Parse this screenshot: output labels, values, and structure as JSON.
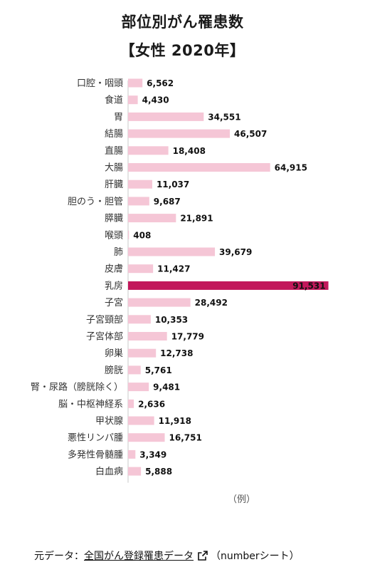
{
  "header": {
    "title": "部位別がん罹患数",
    "subtitle": "【女性 2020年】"
  },
  "chart_data": {
    "type": "bar",
    "orientation": "horizontal",
    "title": "部位別がん罹患数 【女性 2020年】",
    "categories": [
      "口腔・咽頭",
      "食道",
      "胃",
      "結腸",
      "直腸",
      "大腸",
      "肝臓",
      "胆のう・胆管",
      "膵臓",
      "喉頭",
      "肺",
      "皮膚",
      "乳房",
      "子宮",
      "子宮頸部",
      "子宮体部",
      "卵巣",
      "膀胱",
      "腎・尿路（膀胱除く）",
      "脳・中枢神経系",
      "甲状腺",
      "悪性リンパ腫",
      "多発性骨髄腫",
      "白血病"
    ],
    "values": [
      6562,
      4430,
      34551,
      46507,
      18408,
      64915,
      11037,
      9687,
      21891,
      408,
      39679,
      11427,
      91531,
      28492,
      10353,
      17779,
      12738,
      5761,
      9481,
      2636,
      11918,
      16751,
      3349,
      5888
    ],
    "value_labels": [
      "6,562",
      "4,430",
      "34,551",
      "46,507",
      "18,408",
      "64,915",
      "11,037",
      "9,687",
      "21,891",
      "408",
      "39,679",
      "11,427",
      "91,531",
      "28,492",
      "10,353",
      "17,779",
      "12,738",
      "5,761",
      "9,481",
      "2,636",
      "11,918",
      "16,751",
      "3,349",
      "5,888"
    ],
    "highlight_category": "乳房",
    "colors": {
      "bar": "#f5c6d6",
      "highlight": "#c2185b",
      "axis": "#c8c8c8"
    },
    "grid": false,
    "legend": "none"
  },
  "note": "（例）",
  "footer": {
    "prefix": "元データ：",
    "link_text": "全国がん登録罹患データ",
    "suffix": "（numberシート）"
  }
}
